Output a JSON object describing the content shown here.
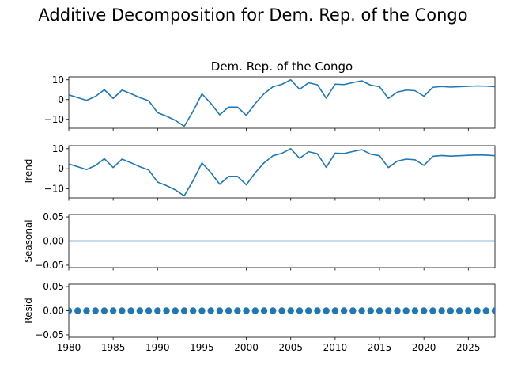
{
  "figure": {
    "suptitle": "Additive Decomposition for Dem. Rep. of the Congo"
  },
  "chart_data": [
    {
      "type": "line",
      "title": "Dem. Rep. of the Congo",
      "ylabel": "",
      "xlim": [
        1980,
        2028
      ],
      "ylim": [
        -14.5,
        11.5
      ],
      "yticks": [
        -10,
        0,
        10
      ],
      "xticks": [
        1980,
        1985,
        1990,
        1995,
        2000,
        2005,
        2010,
        2015,
        2020,
        2025
      ],
      "x": [
        1980,
        1981,
        1982,
        1983,
        1984,
        1985,
        1986,
        1987,
        1988,
        1989,
        1990,
        1991,
        1992,
        1993,
        1994,
        1995,
        1996,
        1997,
        1998,
        1999,
        2000,
        2001,
        2002,
        2003,
        2004,
        2005,
        2006,
        2007,
        2008,
        2009,
        2010,
        2011,
        2012,
        2013,
        2014,
        2015,
        2016,
        2017,
        2018,
        2019,
        2020,
        2021,
        2022,
        2023,
        2024,
        2025,
        2026,
        2027,
        2028
      ],
      "series": [
        {
          "values": [
            2.4,
            1.0,
            -0.4,
            1.6,
            5.0,
            0.6,
            4.8,
            3.0,
            1.0,
            -0.6,
            -6.6,
            -8.4,
            -10.5,
            -13.5,
            -5.9,
            2.9,
            -1.9,
            -7.7,
            -3.8,
            -3.8,
            -8.0,
            -2.0,
            3.0,
            6.5,
            7.7,
            10.0,
            5.2,
            8.5,
            7.5,
            0.7,
            7.8,
            7.6,
            8.6,
            9.5,
            7.3,
            6.5,
            0.6,
            3.8,
            4.8,
            4.5,
            1.7,
            6.2,
            6.6,
            6.3,
            6.5,
            6.7,
            6.9,
            6.8,
            6.5
          ]
        }
      ]
    },
    {
      "type": "line",
      "title": "",
      "ylabel": "Trend",
      "xlim": [
        1980,
        2028
      ],
      "ylim": [
        -14.5,
        11.5
      ],
      "yticks": [
        -10,
        0,
        10
      ],
      "xticks": [
        1980,
        1985,
        1990,
        1995,
        2000,
        2005,
        2010,
        2015,
        2020,
        2025
      ],
      "x": [
        1980,
        1981,
        1982,
        1983,
        1984,
        1985,
        1986,
        1987,
        1988,
        1989,
        1990,
        1991,
        1992,
        1993,
        1994,
        1995,
        1996,
        1997,
        1998,
        1999,
        2000,
        2001,
        2002,
        2003,
        2004,
        2005,
        2006,
        2007,
        2008,
        2009,
        2010,
        2011,
        2012,
        2013,
        2014,
        2015,
        2016,
        2017,
        2018,
        2019,
        2020,
        2021,
        2022,
        2023,
        2024,
        2025,
        2026,
        2027,
        2028
      ],
      "series": [
        {
          "values": [
            2.4,
            1.0,
            -0.4,
            1.6,
            5.0,
            0.6,
            4.8,
            3.0,
            1.0,
            -0.6,
            -6.6,
            -8.4,
            -10.5,
            -13.5,
            -5.9,
            2.9,
            -1.9,
            -7.7,
            -3.8,
            -3.8,
            -8.0,
            -2.0,
            3.0,
            6.5,
            7.7,
            10.0,
            5.2,
            8.5,
            7.5,
            0.7,
            7.8,
            7.6,
            8.6,
            9.5,
            7.3,
            6.5,
            0.6,
            3.8,
            4.8,
            4.5,
            1.7,
            6.2,
            6.6,
            6.3,
            6.5,
            6.7,
            6.9,
            6.8,
            6.5
          ]
        }
      ]
    },
    {
      "type": "line",
      "title": "",
      "ylabel": "Seasonal",
      "xlim": [
        1980,
        2028
      ],
      "ylim": [
        -0.055,
        0.055
      ],
      "yticks": [
        -0.05,
        0.0,
        0.05
      ],
      "ytick_labels": [
        "−0.05",
        "0.00",
        "0.05"
      ],
      "xticks": [
        1980,
        1985,
        1990,
        1995,
        2000,
        2005,
        2010,
        2015,
        2020,
        2025
      ],
      "x": [
        1980,
        1981,
        1982,
        1983,
        1984,
        1985,
        1986,
        1987,
        1988,
        1989,
        1990,
        1991,
        1992,
        1993,
        1994,
        1995,
        1996,
        1997,
        1998,
        1999,
        2000,
        2001,
        2002,
        2003,
        2004,
        2005,
        2006,
        2007,
        2008,
        2009,
        2010,
        2011,
        2012,
        2013,
        2014,
        2015,
        2016,
        2017,
        2018,
        2019,
        2020,
        2021,
        2022,
        2023,
        2024,
        2025,
        2026,
        2027,
        2028
      ],
      "series": [
        {
          "values": [
            0,
            0,
            0,
            0,
            0,
            0,
            0,
            0,
            0,
            0,
            0,
            0,
            0,
            0,
            0,
            0,
            0,
            0,
            0,
            0,
            0,
            0,
            0,
            0,
            0,
            0,
            0,
            0,
            0,
            0,
            0,
            0,
            0,
            0,
            0,
            0,
            0,
            0,
            0,
            0,
            0,
            0,
            0,
            0,
            0,
            0,
            0,
            0,
            0
          ]
        }
      ]
    },
    {
      "type": "scatter",
      "title": "",
      "ylabel": "Resid",
      "xlim": [
        1980,
        2028
      ],
      "ylim": [
        -0.055,
        0.055
      ],
      "yticks": [
        -0.05,
        0.0,
        0.05
      ],
      "ytick_labels": [
        "−0.05",
        "0.00",
        "0.05"
      ],
      "xticks": [
        1980,
        1985,
        1990,
        1995,
        2000,
        2005,
        2010,
        2015,
        2020,
        2025
      ],
      "xtick_labels": [
        "1980",
        "1985",
        "1990",
        "1995",
        "2000",
        "2005",
        "2010",
        "2015",
        "2020",
        "2025"
      ],
      "x": [
        1980,
        1981,
        1982,
        1983,
        1984,
        1985,
        1986,
        1987,
        1988,
        1989,
        1990,
        1991,
        1992,
        1993,
        1994,
        1995,
        1996,
        1997,
        1998,
        1999,
        2000,
        2001,
        2002,
        2003,
        2004,
        2005,
        2006,
        2007,
        2008,
        2009,
        2010,
        2011,
        2012,
        2013,
        2014,
        2015,
        2016,
        2017,
        2018,
        2019,
        2020,
        2021,
        2022,
        2023,
        2024,
        2025,
        2026,
        2027,
        2028
      ],
      "series": [
        {
          "values": [
            0,
            0,
            0,
            0,
            0,
            0,
            0,
            0,
            0,
            0,
            0,
            0,
            0,
            0,
            0,
            0,
            0,
            0,
            0,
            0,
            0,
            0,
            0,
            0,
            0,
            0,
            0,
            0,
            0,
            0,
            0,
            0,
            0,
            0,
            0,
            0,
            0,
            0,
            0,
            0,
            0,
            0,
            0,
            0,
            0,
            0,
            0,
            0,
            0
          ]
        }
      ]
    }
  ],
  "colors": {
    "series": "#1f77b4",
    "axis": "#000000"
  }
}
